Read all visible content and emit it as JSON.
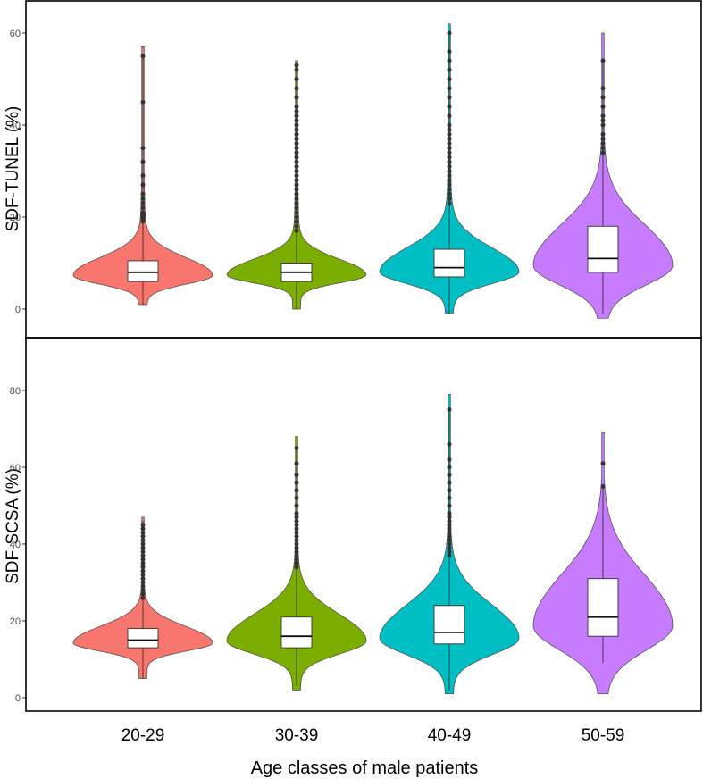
{
  "chart_data": {
    "type": "violin",
    "xlabel": "Age classes of male patients",
    "categories": [
      "20-29",
      "30-39",
      "40-49",
      "50-59"
    ],
    "colors": [
      "#F8766D",
      "#7CAE00",
      "#00BFC4",
      "#C77CFF"
    ],
    "panels": [
      {
        "ylabel": "SDF-TUNEL (%)",
        "ylim": [
          -3,
          66
        ],
        "yticks": [
          0,
          20,
          40,
          60
        ],
        "groups": [
          {
            "category": "20-29",
            "range": [
              1,
              57
            ],
            "box": {
              "q1": 6,
              "median": 8,
              "q3": 10.5
            },
            "whisker": [
              1,
              55
            ],
            "outliers": [
              55,
              45,
              35,
              32,
              29,
              27,
              25,
              24,
              23,
              22,
              21,
              20.5,
              20,
              19.5,
              19
            ]
          },
          {
            "category": "30-39",
            "range": [
              0,
              54
            ],
            "box": {
              "q1": 6,
              "median": 8,
              "q3": 10
            },
            "whisker": [
              0,
              53
            ],
            "outliers": [
              53,
              52,
              50,
              48,
              46,
              44,
              43,
              42,
              41,
              40,
              39,
              38,
              37,
              36,
              35,
              34,
              33,
              32,
              31,
              30,
              29,
              28,
              27,
              26,
              25,
              24,
              23,
              22,
              21,
              20,
              19,
              18,
              17
            ]
          },
          {
            "category": "40-49",
            "range": [
              -1,
              62
            ],
            "box": {
              "q1": 7,
              "median": 9,
              "q3": 13
            },
            "whisker": [
              -1,
              60
            ],
            "outliers": [
              60,
              56,
              54,
              52,
              50,
              48,
              46,
              44,
              42,
              40,
              39,
              38,
              37,
              36,
              35,
              34,
              33,
              32,
              31,
              30,
              29,
              28,
              27,
              26,
              25,
              24,
              23
            ]
          },
          {
            "category": "50-59",
            "range": [
              -2,
              60
            ],
            "box": {
              "q1": 8,
              "median": 11,
              "q3": 18
            },
            "whisker": [
              -1,
              54
            ],
            "outliers": [
              54,
              48,
              46,
              44,
              42,
              41,
              40,
              38,
              37,
              36,
              35,
              34
            ]
          }
        ]
      },
      {
        "ylabel": "SDF-SCSA (%)",
        "ylim": [
          -4,
          92
        ],
        "yticks": [
          0,
          20,
          40,
          60,
          80
        ],
        "groups": [
          {
            "category": "20-29",
            "range": [
              5,
              47
            ],
            "box": {
              "q1": 13,
              "median": 15,
              "q3": 18
            },
            "whisker": [
              5,
              46
            ],
            "outliers": [
              45,
              44,
              43,
              42,
              41,
              40,
              39,
              38,
              37,
              36,
              35,
              34,
              33,
              32,
              31,
              30,
              29,
              28,
              27,
              26
            ]
          },
          {
            "category": "30-39",
            "range": [
              2,
              68
            ],
            "box": {
              "q1": 13,
              "median": 16,
              "q3": 21
            },
            "whisker": [
              3,
              65
            ],
            "outliers": [
              65,
              61,
              58,
              56,
              54,
              52,
              50,
              48,
              47,
              46,
              45,
              44,
              43,
              42,
              41,
              40,
              39,
              38,
              37,
              36,
              35,
              34
            ]
          },
          {
            "category": "40-49",
            "range": [
              1,
              79
            ],
            "box": {
              "q1": 14,
              "median": 17,
              "q3": 24
            },
            "whisker": [
              2,
              75
            ],
            "outliers": [
              75,
              66,
              62,
              60,
              58,
              56,
              54,
              52,
              50,
              48,
              47,
              46,
              45,
              44,
              43,
              42,
              41,
              40,
              39,
              38,
              37
            ]
          },
          {
            "category": "50-59",
            "range": [
              1,
              69
            ],
            "box": {
              "q1": 16,
              "median": 21,
              "q3": 31
            },
            "whisker": [
              9,
              55
            ],
            "outliers": [
              61,
              55
            ]
          }
        ]
      }
    ]
  }
}
